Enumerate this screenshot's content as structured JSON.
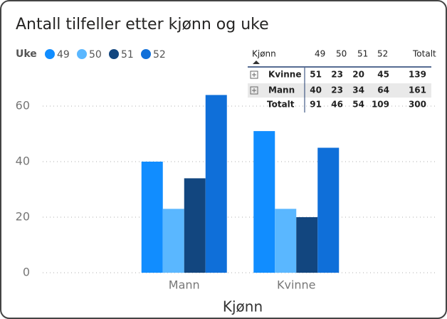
{
  "chart_data": {
    "type": "bar",
    "title": "Antall tilfeller etter kjønn og uke",
    "legend_title": "Uke",
    "legend": "top-left",
    "categories": [
      "Mann",
      "Kvinne"
    ],
    "series": [
      {
        "name": "49",
        "color": "#118dff",
        "values": [
          40,
          51
        ]
      },
      {
        "name": "50",
        "color": "#5ab7ff",
        "values": [
          23,
          23
        ]
      },
      {
        "name": "51",
        "color": "#12467f",
        "values": [
          34,
          20
        ]
      },
      {
        "name": "52",
        "color": "#0f6fd9",
        "values": [
          64,
          45
        ]
      }
    ],
    "x_label": "Kjønn",
    "ylim": [
      0,
      70
    ],
    "yticks": [
      0,
      20,
      40,
      60
    ],
    "grid": true
  },
  "table": {
    "header": [
      "Kjønn",
      "49",
      "50",
      "51",
      "52",
      "Totalt"
    ],
    "rows": [
      [
        "Kvinne",
        "51",
        "23",
        "20",
        "45",
        "139"
      ],
      [
        "Mann",
        "40",
        "23",
        "34",
        "64",
        "161"
      ],
      [
        "Totalt",
        "91",
        "46",
        "54",
        "109",
        "300"
      ]
    ]
  }
}
